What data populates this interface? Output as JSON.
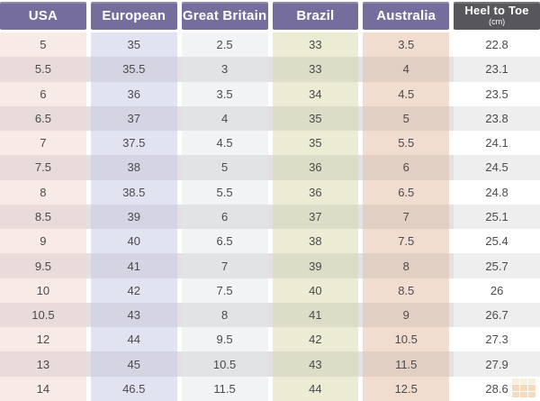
{
  "chart_data": {
    "type": "table",
    "columns": [
      "USA",
      "European",
      "Great Britain",
      "Brazil",
      "Australia",
      "Heel to Toe"
    ],
    "unit_note": "(cm)",
    "rows": [
      [
        5,
        35,
        2.5,
        33,
        3.5,
        22.8
      ],
      [
        5.5,
        35.5,
        3,
        33,
        4,
        23.1
      ],
      [
        6,
        36,
        3.5,
        34,
        4.5,
        23.5
      ],
      [
        6.5,
        37,
        4,
        35,
        5,
        23.8
      ],
      [
        7,
        37.5,
        4.5,
        35,
        5.5,
        24.1
      ],
      [
        7.5,
        38,
        5,
        36,
        6,
        24.5
      ],
      [
        8,
        38.5,
        5.5,
        36,
        6.5,
        24.8
      ],
      [
        8.5,
        39,
        6,
        37,
        7,
        25.1
      ],
      [
        9,
        40,
        6.5,
        38,
        7.5,
        25.4
      ],
      [
        9.5,
        41,
        7,
        39,
        8,
        25.7
      ],
      [
        10,
        42,
        7.5,
        40,
        8.5,
        26
      ],
      [
        10.5,
        43,
        8,
        41,
        9,
        26.7
      ],
      [
        12,
        44,
        9.5,
        42,
        10.5,
        27.3
      ],
      [
        13,
        45,
        10.5,
        43,
        11.5,
        27.9
      ],
      [
        14,
        46.5,
        11.5,
        44,
        12.5,
        28.6
      ]
    ],
    "layout": {
      "header_position": "top",
      "grid": "column-tinted-stripes"
    }
  },
  "colors": {
    "header_purple": "#756e9d",
    "header_dark": "#57565a",
    "header_text": "#ffffff",
    "body_text": "#4b4a4d",
    "column_tints": [
      "#f8eae7",
      "#e2e3f1",
      "#f1f3f5",
      "#ebecd3",
      "#f1ddcf",
      "#ffffff"
    ],
    "even_row_gap": "#e4e0e1",
    "even_row_overlay": "rgba(103,96,102,0.11)",
    "watermark_orange": "#e8a25b"
  }
}
